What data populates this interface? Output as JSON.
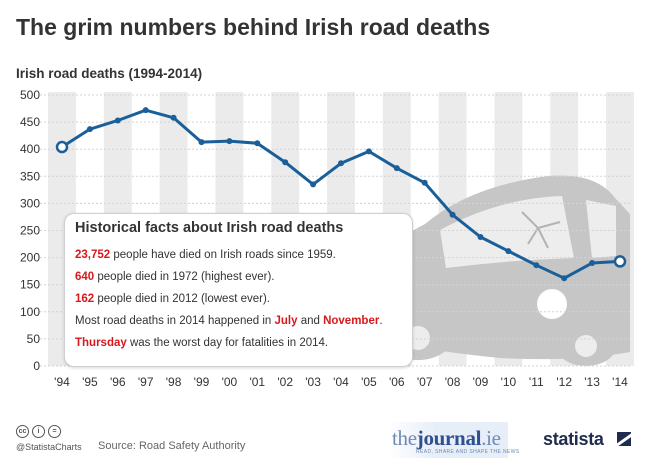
{
  "title": "The grim numbers behind Irish road deaths",
  "chart_data": {
    "type": "line",
    "title": "Irish road deaths (1994-2014)",
    "xlabel": "",
    "ylabel": "",
    "categories": [
      "'94",
      "'95",
      "'96",
      "'97",
      "'98",
      "'99",
      "'00",
      "'01",
      "'02",
      "'03",
      "'04",
      "'05",
      "'06",
      "'07",
      "'08",
      "'09",
      "'10",
      "'11",
      "'12",
      "'13",
      "'14"
    ],
    "values": [
      404,
      437,
      453,
      472,
      458,
      413,
      415,
      411,
      376,
      335,
      374,
      396,
      365,
      338,
      279,
      238,
      212,
      186,
      162,
      190,
      193
    ],
    "ylim": [
      0,
      500
    ],
    "yticks": [
      0,
      50,
      100,
      150,
      200,
      250,
      300,
      350,
      400,
      450,
      500
    ],
    "line_color": "#1a5f99",
    "stripe_color": "#ebebeb",
    "grid": true
  },
  "facts": {
    "title": "Historical facts about Irish road deaths",
    "f1": {
      "num": "23,752",
      "rest": " people have died on Irish roads since 1959."
    },
    "f2": {
      "num": "640",
      "rest": " people died in 1972 (highest ever)."
    },
    "f3": {
      "num": "162",
      "rest": " people died in 2012 (lowest ever)."
    },
    "f4": {
      "pre": "Most road deaths in 2014 happened in ",
      "m1": "July",
      "mid": " and ",
      "m2": "November",
      "post": "."
    },
    "f5": {
      "day": "Thursday",
      "rest": " was the worst day for fatalities in 2014."
    }
  },
  "footer": {
    "cc_icons": [
      "cc-icon",
      "attribution-icon",
      "noderivs-icon"
    ],
    "cc_labels": [
      "cc",
      "i",
      "="
    ],
    "handle": "@StatistaCharts",
    "source": "Source: Road Safety Authority",
    "journal_a": "the",
    "journal_b": "journal",
    "journal_c": ".ie",
    "journal_tagline": "READ, SHARE AND SHAPE THE NEWS",
    "brand": "statista"
  }
}
